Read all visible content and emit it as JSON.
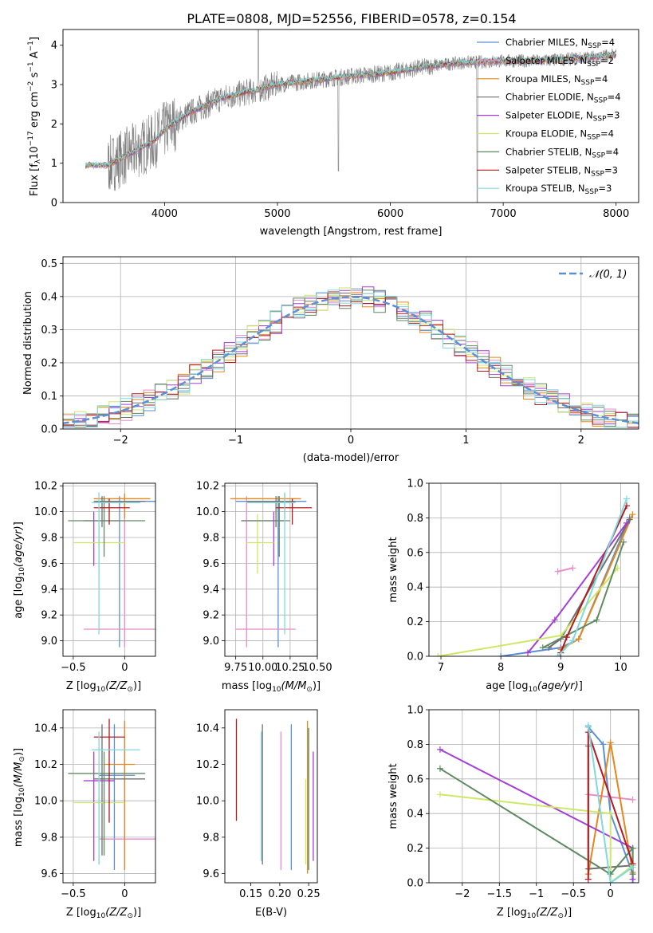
{
  "title": "PLATE=0808, MJD=52556, FIBERID=0578, z=0.154",
  "colors": {
    "c1": "#5b8fd6",
    "c2": "#e88bc8",
    "c3": "#e6861c",
    "c4": "#6f6f6f",
    "c5": "#a33ed6",
    "c6": "#cde866",
    "c7": "#5f8a62",
    "c8": "#b3191f",
    "c9": "#7fd9de",
    "obs": "#808080",
    "normal": "#5b8fd6"
  },
  "chart_data": [
    {
      "id": "spectrum",
      "type": "line",
      "title": "PLATE=0808, MJD=52556, FIBERID=0578, z=0.154",
      "xlabel": "wavelength [Angstrom, rest frame]",
      "ylabel": "Flux [f",
      "xlim": [
        3100,
        8200
      ],
      "ylim": [
        0,
        4.4
      ],
      "xticks": [
        4000,
        5000,
        6000,
        7000,
        8000
      ],
      "yticks": [
        0,
        1,
        2,
        3,
        4
      ],
      "grid": false,
      "legend_position": "top-right",
      "legend": [
        {
          "label": "Chabrier MILES, N",
          "sub": "SSP",
          "suffix": "=4",
          "color": "c1"
        },
        {
          "label": "Salpeter MILES, N",
          "sub": "SSP",
          "suffix": "=2",
          "color": "c2"
        },
        {
          "label": "Kroupa MILES, N",
          "sub": "SSP",
          "suffix": "=4",
          "color": "c3"
        },
        {
          "label": "Chabrier ELODIE, N",
          "sub": "SSP",
          "suffix": "=4",
          "color": "c4"
        },
        {
          "label": "Salpeter ELODIE, N",
          "sub": "SSP",
          "suffix": "=3",
          "color": "c5"
        },
        {
          "label": "Kroupa ELODIE, N",
          "sub": "SSP",
          "suffix": "=4",
          "color": "c6"
        },
        {
          "label": "Chabrier STELIB, N",
          "sub": "SSP",
          "suffix": "=4",
          "color": "c7"
        },
        {
          "label": "Salpeter STELIB, N",
          "sub": "SSP",
          "suffix": "=3",
          "color": "c8"
        },
        {
          "label": "Kroupa STELIB, N",
          "sub": "SSP",
          "suffix": "=3",
          "color": "c9"
        }
      ],
      "continuum": {
        "x": [
          3300,
          3500,
          3700,
          3900,
          4000,
          4200,
          4500,
          4800,
          5000,
          5300,
          5600,
          6000,
          6300,
          6600,
          7000,
          7300,
          7600,
          8000
        ],
        "y": [
          0.95,
          0.95,
          1.25,
          1.55,
          1.85,
          2.25,
          2.65,
          2.85,
          3.0,
          3.1,
          3.2,
          3.3,
          3.45,
          3.55,
          3.6,
          3.6,
          3.65,
          3.75
        ]
      }
    },
    {
      "id": "residuals",
      "type": "bar",
      "xlabel": "(data-model)/error",
      "ylabel": "Normed distribution",
      "xlim": [
        -2.5,
        2.5
      ],
      "ylim": [
        0,
        0.52
      ],
      "xticks": [
        -2,
        -1,
        0,
        1,
        2
      ],
      "yticks": [
        0.0,
        0.1,
        0.2,
        0.3,
        0.4,
        0.5
      ],
      "grid": true,
      "legend_position": "top-right",
      "legend": [
        {
          "label": "𝒩(0, 1)",
          "color": "normal"
        }
      ],
      "bin_width": 0.1
    },
    {
      "id": "age-vs-z",
      "type": "scatter",
      "xlabel": "Z [log",
      "ylabel": "age  [log",
      "xlim": [
        -0.6,
        0.3
      ],
      "ylim": [
        8.88,
        10.22
      ],
      "xticks": [
        -0.5,
        0.0
      ],
      "yticks": [
        9.0,
        9.2,
        9.4,
        9.6,
        9.8,
        10.0,
        10.2
      ],
      "grid": true,
      "crosses": [
        {
          "color": "c1",
          "x": -0.05,
          "y": 10.08,
          "xe": [
            -0.28,
            0.3
          ],
          "ye": [
            8.95,
            10.12
          ]
        },
        {
          "color": "c2",
          "x": 0.0,
          "y": 9.09,
          "xe": [
            -0.4,
            0.3
          ],
          "ye": [
            8.95,
            10.12
          ]
        },
        {
          "color": "c3",
          "x": 0.0,
          "y": 10.1,
          "xe": [
            -0.3,
            0.25
          ],
          "ye": [
            9.95,
            10.14
          ]
        },
        {
          "color": "c4",
          "x": -0.22,
          "y": 10.08,
          "xe": [
            -0.3,
            0.2
          ],
          "ye": [
            9.88,
            10.12
          ]
        },
        {
          "color": "c5",
          "x": -0.3,
          "y": 9.93,
          "xe": [
            -0.4,
            -0.05
          ],
          "ye": [
            9.58,
            10.0
          ]
        },
        {
          "color": "c6",
          "x": -0.25,
          "y": 9.76,
          "xe": [
            -0.5,
            0.0
          ],
          "ye": [
            9.52,
            9.98
          ]
        },
        {
          "color": "c7",
          "x": -0.2,
          "y": 9.93,
          "xe": [
            -0.55,
            0.2
          ],
          "ye": [
            9.65,
            10.12
          ]
        },
        {
          "color": "c8",
          "x": -0.15,
          "y": 10.03,
          "xe": [
            -0.3,
            0.05
          ],
          "ye": [
            9.9,
            10.1
          ]
        },
        {
          "color": "c9",
          "x": -0.25,
          "y": 10.07,
          "xe": [
            -0.32,
            0.15
          ],
          "ye": [
            9.05,
            10.15
          ]
        }
      ]
    },
    {
      "id": "age-vs-mass",
      "type": "scatter",
      "xlabel": "mass [log",
      "xlim": [
        9.65,
        10.5
      ],
      "ylim": [
        8.88,
        10.22
      ],
      "xticks": [
        9.75,
        10.0,
        10.25,
        10.5
      ],
      "xticklabels": [
        "9.75",
        "10.00",
        "10.25",
        "10.50"
      ],
      "yticks": [
        9.0,
        9.2,
        9.4,
        9.6,
        9.8,
        10.0,
        10.2
      ],
      "grid": true,
      "crosses": [
        {
          "color": "c1",
          "x": 10.14,
          "y": 10.08,
          "xe": [
            9.75,
            10.4
          ],
          "ye": [
            8.95,
            10.12
          ]
        },
        {
          "color": "c2",
          "x": 9.85,
          "y": 9.09,
          "xe": [
            9.75,
            10.3
          ],
          "ye": [
            8.95,
            10.12
          ]
        },
        {
          "color": "c3",
          "x": 10.2,
          "y": 10.1,
          "xe": [
            9.7,
            10.35
          ],
          "ye": [
            9.95,
            10.14
          ]
        },
        {
          "color": "c4",
          "x": 10.12,
          "y": 10.08,
          "xe": [
            9.85,
            10.3
          ],
          "ye": [
            9.88,
            10.12
          ]
        },
        {
          "color": "c5",
          "x": 10.1,
          "y": 9.93,
          "xe": [
            9.8,
            10.2
          ],
          "ye": [
            9.58,
            10.0
          ]
        },
        {
          "color": "c6",
          "x": 9.95,
          "y": 9.76,
          "xe": [
            9.85,
            10.1
          ],
          "ye": [
            9.52,
            9.98
          ]
        },
        {
          "color": "c7",
          "x": 10.15,
          "y": 9.93,
          "xe": [
            9.8,
            10.25
          ],
          "ye": [
            9.65,
            10.12
          ]
        },
        {
          "color": "c8",
          "x": 10.27,
          "y": 10.03,
          "xe": [
            10.12,
            10.45
          ],
          "ye": [
            9.9,
            10.1
          ]
        },
        {
          "color": "c9",
          "x": 10.2,
          "y": 10.07,
          "xe": [
            9.85,
            10.3
          ],
          "ye": [
            9.05,
            10.15
          ]
        }
      ]
    },
    {
      "id": "weight-vs-age",
      "type": "line",
      "xlabel": "age  [log",
      "ylabel": "mass weight",
      "xlim": [
        6.8,
        10.3
      ],
      "ylim": [
        0,
        1.0
      ],
      "xticks": [
        7,
        8,
        9,
        10
      ],
      "yticks": [
        0.0,
        0.2,
        0.4,
        0.6,
        0.8,
        1.0
      ],
      "grid": true,
      "series": [
        {
          "color": "c1",
          "x": [
            8.0,
            9.0,
            9.3,
            10.15
          ],
          "y": [
            0.0,
            0.05,
            0.1,
            0.8
          ]
        },
        {
          "color": "c2",
          "x": [
            8.95,
            9.2
          ],
          "y": [
            0.49,
            0.51
          ]
        },
        {
          "color": "c3",
          "x": [
            9.0,
            9.3,
            10.2
          ],
          "y": [
            0.04,
            0.1,
            0.82
          ]
        },
        {
          "color": "c4",
          "x": [
            8.8,
            9.0,
            10.15
          ],
          "y": [
            0.05,
            0.1,
            0.79
          ]
        },
        {
          "color": "c5",
          "x": [
            8.45,
            8.9,
            10.1
          ],
          "y": [
            0.02,
            0.21,
            0.77
          ]
        },
        {
          "color": "c6",
          "x": [
            6.95,
            9.0,
            9.95
          ],
          "y": [
            0.0,
            0.12,
            0.51
          ]
        },
        {
          "color": "c7",
          "x": [
            8.7,
            9.6,
            10.05
          ],
          "y": [
            0.05,
            0.21,
            0.66
          ]
        },
        {
          "color": "c8",
          "x": [
            9.0,
            9.1,
            10.1
          ],
          "y": [
            0.02,
            0.11,
            0.87
          ]
        },
        {
          "color": "c9",
          "x": [
            8.95,
            9.2,
            10.1
          ],
          "y": [
            0.0,
            0.09,
            0.91
          ]
        }
      ]
    },
    {
      "id": "mass-vs-z",
      "type": "scatter",
      "xlabel": "Z [log",
      "ylabel": "mass [log",
      "xlim": [
        -0.6,
        0.3
      ],
      "ylim": [
        9.55,
        10.5
      ],
      "xticks": [
        -0.5,
        0.0
      ],
      "yticks": [
        9.6,
        9.8,
        10.0,
        10.2,
        10.4
      ],
      "grid": true,
      "crosses": [
        {
          "color": "c1",
          "x": -0.1,
          "y": 10.14,
          "xe": [
            -0.25,
            0.1
          ],
          "ye": [
            9.62,
            10.42
          ]
        },
        {
          "color": "c2",
          "x": 0.0,
          "y": 9.79,
          "xe": [
            -0.25,
            0.3
          ],
          "ye": [
            9.62,
            10.42
          ]
        },
        {
          "color": "c3",
          "x": 0.0,
          "y": 10.2,
          "xe": [
            -0.2,
            0.1
          ],
          "ye": [
            9.62,
            10.44
          ]
        },
        {
          "color": "c4",
          "x": -0.22,
          "y": 10.12,
          "xe": [
            -0.3,
            0.2
          ],
          "ye": [
            9.7,
            10.42
          ]
        },
        {
          "color": "c5",
          "x": -0.3,
          "y": 10.11,
          "xe": [
            -0.4,
            -0.1
          ],
          "ye": [
            9.67,
            10.27
          ]
        },
        {
          "color": "c6",
          "x": -0.25,
          "y": 9.99,
          "xe": [
            -0.5,
            0.0
          ],
          "ye": [
            9.65,
            10.12
          ]
        },
        {
          "color": "c7",
          "x": -0.2,
          "y": 10.15,
          "xe": [
            -0.55,
            0.2
          ],
          "ye": [
            9.7,
            10.27
          ]
        },
        {
          "color": "c8",
          "x": -0.15,
          "y": 10.35,
          "xe": [
            -0.3,
            0.0
          ],
          "ye": [
            9.88,
            10.45
          ]
        },
        {
          "color": "c9",
          "x": -0.25,
          "y": 10.28,
          "xe": [
            -0.32,
            0.15
          ],
          "ye": [
            9.65,
            10.38
          ]
        }
      ]
    },
    {
      "id": "mass-vs-ebv",
      "type": "scatter",
      "xlabel": "E(B-V)",
      "xlim": [
        0.105,
        0.265
      ],
      "ylim": [
        9.55,
        10.5
      ],
      "xticks": [
        0.15,
        0.2,
        0.25
      ],
      "xticklabels": [
        "0.15",
        "0.20",
        "0.25"
      ],
      "yticks": [
        9.6,
        9.8,
        10.0,
        10.2,
        10.4
      ],
      "grid": false,
      "vlines": [
        {
          "color": "c8",
          "x": 0.125,
          "y": [
            9.89,
            10.45
          ]
        },
        {
          "color": "c9",
          "x": 0.168,
          "y": [
            9.67,
            10.38
          ]
        },
        {
          "color": "c4",
          "x": 0.17,
          "y": [
            9.65,
            10.42
          ]
        },
        {
          "color": "c2",
          "x": 0.202,
          "y": [
            9.62,
            10.38
          ]
        },
        {
          "color": "c1",
          "x": 0.22,
          "y": [
            9.62,
            10.42
          ]
        },
        {
          "color": "c6",
          "x": 0.245,
          "y": [
            9.65,
            10.12
          ]
        },
        {
          "color": "c3",
          "x": 0.248,
          "y": [
            9.6,
            10.44
          ]
        },
        {
          "color": "c7",
          "x": 0.25,
          "y": [
            9.62,
            10.4
          ]
        },
        {
          "color": "c5",
          "x": 0.258,
          "y": [
            9.67,
            10.27
          ]
        }
      ]
    },
    {
      "id": "weight-vs-z",
      "type": "line",
      "xlabel": "Z [log",
      "ylabel": "mass weight",
      "xlim": [
        -2.45,
        0.38
      ],
      "ylim": [
        0,
        1.0
      ],
      "xticks": [
        -2.0,
        -1.5,
        -1.0,
        -0.5,
        0.0
      ],
      "yticks": [
        0.0,
        0.2,
        0.4,
        0.6,
        0.8,
        1.0
      ],
      "grid": true,
      "series": [
        {
          "color": "c1",
          "x": [
            -0.3,
            -0.1,
            0.0,
            0.3,
            0.3
          ],
          "y": [
            0.9,
            0.8,
            0.4,
            0.05,
            0.0
          ]
        },
        {
          "color": "c2",
          "x": [
            -0.3,
            0.3
          ],
          "y": [
            0.51,
            0.48
          ]
        },
        {
          "color": "c3",
          "x": [
            -0.3,
            0.0,
            0.3
          ],
          "y": [
            0.05,
            0.81,
            0.06
          ]
        },
        {
          "color": "c4",
          "x": [
            -0.3,
            -0.3,
            0.3
          ],
          "y": [
            0.79,
            0.08,
            0.1
          ]
        },
        {
          "color": "c5",
          "x": [
            -2.3,
            0.3,
            0.3
          ],
          "y": [
            0.77,
            0.2,
            0.02
          ]
        },
        {
          "color": "c6",
          "x": [
            -2.3,
            0.0,
            0.0,
            0.3
          ],
          "y": [
            0.51,
            0.4,
            0.0,
            0.1
          ]
        },
        {
          "color": "c7",
          "x": [
            -2.3,
            0.0,
            0.3,
            0.3
          ],
          "y": [
            0.66,
            0.05,
            0.2,
            0.05
          ]
        },
        {
          "color": "c8",
          "x": [
            -0.3,
            -0.3,
            0.3
          ],
          "y": [
            0.02,
            0.87,
            0.11
          ]
        },
        {
          "color": "c9",
          "x": [
            -0.3,
            0.0,
            0.3
          ],
          "y": [
            0.91,
            0.0,
            0.09
          ]
        }
      ]
    }
  ]
}
